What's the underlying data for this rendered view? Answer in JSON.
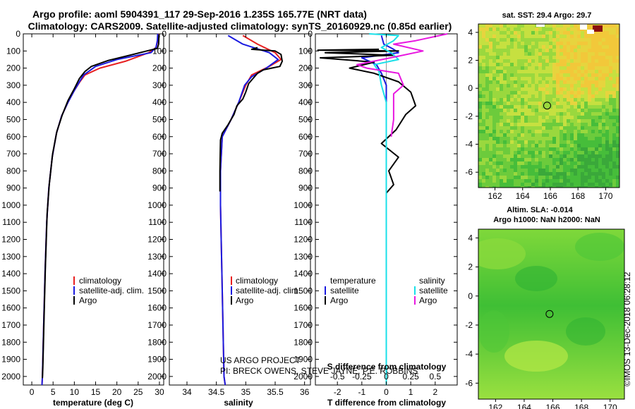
{
  "figure": {
    "title_line1": "Argo profile: aoml 5904391_117 29-Sep-2016 1.235S 165.77E (NRT data)",
    "title_line2": "Climatology: CARS2009. Satellite-adjusted climatology: synTS_20160929.nc (0.85d earlier)",
    "credit_line1": "US ARGO PROJECT",
    "credit_line2": "PI: BRECK OWENS, STEVE JAYNE, P.E. ROBBINS",
    "watermark": "©IMOS 13-Dec-2018 06:28:12"
  },
  "colors": {
    "climatology": "#e82020",
    "satellite": "#1a1ae0",
    "argo": "#000000",
    "cyan": "#18e0e8",
    "magenta": "#e818e0"
  },
  "chart_data": [
    {
      "type": "line",
      "name": "temperature",
      "xlabel": "temperature (deg C)",
      "xlim": [
        -2,
        31
      ],
      "ylim": [
        2050,
        0
      ],
      "xticks": [
        0,
        5,
        10,
        15,
        20,
        25,
        30
      ],
      "yticks": [
        0,
        100,
        200,
        300,
        400,
        500,
        600,
        700,
        800,
        900,
        1000,
        1100,
        1200,
        1300,
        1400,
        1500,
        1600,
        1700,
        1800,
        1900,
        2000
      ],
      "legend": [
        "climatology",
        "satellite-adj. clim.",
        "Argo"
      ],
      "series": [
        {
          "name": "climatology",
          "color": "#e82020",
          "points": [
            [
              29.8,
              0
            ],
            [
              29.6,
              40
            ],
            [
              29.2,
              80
            ],
            [
              27.5,
              110
            ],
            [
              22,
              160
            ],
            [
              16,
              200
            ],
            [
              12.5,
              240
            ],
            [
              11.3,
              280
            ],
            [
              10,
              330
            ],
            [
              8.5,
              400
            ],
            [
              7,
              480
            ],
            [
              5.8,
              580
            ],
            [
              4.8,
              720
            ],
            [
              4,
              900
            ],
            [
              3.5,
              1100
            ],
            [
              3.1,
              1400
            ],
            [
              2.8,
              1700
            ],
            [
              2.5,
              2000
            ],
            [
              2.4,
              2050
            ]
          ]
        },
        {
          "name": "satellite-adj. clim.",
          "color": "#1a1ae0",
          "points": [
            [
              29.6,
              0
            ],
            [
              29.5,
              40
            ],
            [
              29.2,
              80
            ],
            [
              28,
              110
            ],
            [
              20,
              150
            ],
            [
              15,
              190
            ],
            [
              12.2,
              240
            ],
            [
              11.2,
              280
            ],
            [
              10,
              330
            ],
            [
              8.5,
              400
            ],
            [
              7,
              480
            ],
            [
              5.8,
              580
            ],
            [
              4.8,
              720
            ],
            [
              4,
              900
            ],
            [
              3.5,
              1100
            ],
            [
              3.1,
              1400
            ],
            [
              2.8,
              1700
            ],
            [
              2.5,
              2000
            ],
            [
              2.4,
              2050
            ]
          ]
        },
        {
          "name": "Argo",
          "color": "#000000",
          "points": [
            [
              29.9,
              5
            ],
            [
              29.8,
              60
            ],
            [
              29.5,
              85
            ],
            [
              27,
              100
            ],
            [
              23,
              125
            ],
            [
              18,
              155
            ],
            [
              14,
              190
            ],
            [
              12.5,
              220
            ],
            [
              11.2,
              260
            ],
            [
              10,
              320
            ],
            [
              8.5,
              390
            ],
            [
              7.2,
              470
            ],
            [
              5.9,
              570
            ],
            [
              4.9,
              700
            ],
            [
              4.1,
              880
            ],
            [
              3.6,
              1050
            ],
            [
              3.2,
              1350
            ],
            [
              2.9,
              1650
            ],
            [
              2.6,
              1950
            ],
            [
              2.5,
              2010
            ]
          ]
        }
      ]
    },
    {
      "type": "line",
      "name": "salinity",
      "xlabel": "salinity",
      "xlim": [
        33.7,
        36.1
      ],
      "ylim": [
        2050,
        0
      ],
      "xticks": [
        34,
        34.5,
        35,
        35.5,
        36
      ],
      "yticks": [
        0,
        100,
        200,
        300,
        400,
        500,
        600,
        700,
        800,
        900,
        1000,
        1100,
        1200,
        1300,
        1400,
        1500,
        1600,
        1700,
        1800,
        1900,
        2000
      ],
      "legend": [
        "climatology",
        "satellite-adj. clim.",
        "Argo"
      ],
      "series": [
        {
          "name": "climatology",
          "color": "#e82020",
          "points": [
            [
              34.95,
              10
            ],
            [
              35.2,
              60
            ],
            [
              35.5,
              110
            ],
            [
              35.6,
              150
            ],
            [
              35.4,
              190
            ],
            [
              35.1,
              240
            ],
            [
              35,
              300
            ],
            [
              34.88,
              400
            ],
            [
              34.75,
              500
            ],
            [
              34.6,
              600
            ],
            [
              34.57,
              800
            ],
            [
              34.57,
              1000
            ],
            [
              34.6,
              1500
            ],
            [
              34.63,
              2000
            ],
            [
              34.65,
              2050
            ]
          ]
        },
        {
          "name": "satellite-adj. clim.",
          "color": "#1a1ae0",
          "points": [
            [
              34.7,
              10
            ],
            [
              34.95,
              60
            ],
            [
              35.4,
              110
            ],
            [
              35.55,
              150
            ],
            [
              35.35,
              200
            ],
            [
              35.1,
              250
            ],
            [
              34.98,
              300
            ],
            [
              34.88,
              400
            ],
            [
              34.75,
              500
            ],
            [
              34.6,
              600
            ],
            [
              34.57,
              800
            ],
            [
              34.57,
              1000
            ],
            [
              34.6,
              1500
            ],
            [
              34.63,
              2000
            ],
            [
              34.65,
              2050
            ]
          ]
        },
        {
          "name": "Argo",
          "color": "#000000",
          "points": [
            [
              35.2,
              80
            ],
            [
              35.1,
              90
            ],
            [
              35.5,
              100
            ],
            [
              35.6,
              120
            ],
            [
              35.62,
              160
            ],
            [
              35.58,
              190
            ],
            [
              35.3,
              210
            ],
            [
              35.2,
              230
            ],
            [
              35.05,
              290
            ],
            [
              35,
              340
            ],
            [
              34.95,
              380
            ],
            [
              34.85,
              420
            ],
            [
              34.8,
              470
            ],
            [
              34.7,
              530
            ],
            [
              34.6,
              580
            ],
            [
              34.57,
              620
            ],
            [
              34.56,
              800
            ],
            [
              34.56,
              920
            ]
          ]
        }
      ]
    },
    {
      "type": "line",
      "name": "difference",
      "xlabel": "T difference from climatology",
      "xlabel_top": "S difference from climatology",
      "xlim": [
        -2.9,
        2.9
      ],
      "ylim": [
        2050,
        0
      ],
      "xticks": [
        -2,
        -1,
        0,
        1,
        2
      ],
      "xticks_s": [
        "-0.5",
        "-0.25",
        "0",
        "0.25",
        "0.5"
      ],
      "yticks": [
        0,
        100,
        200,
        300,
        400,
        500,
        600,
        700,
        800,
        900,
        1000,
        1100,
        1200,
        1300,
        1400,
        1500,
        1600,
        1700,
        1800,
        1900,
        2000
      ],
      "legend_t_title": "temperature",
      "legend_s_title": "salinity",
      "legend_t": [
        "satellite",
        "Argo"
      ],
      "legend_s": [
        "satellite",
        "Argo"
      ],
      "series": [
        {
          "name": "T satellite",
          "color": "#1a1ae0",
          "points": [
            [
              -0.2,
              10
            ],
            [
              -0.1,
              60
            ],
            [
              0.3,
              90
            ],
            [
              0.5,
              110
            ],
            [
              -1,
              140
            ],
            [
              -0.4,
              180
            ],
            [
              -0.2,
              230
            ],
            [
              0,
              300
            ],
            [
              0,
              500
            ],
            [
              0,
              1000
            ],
            [
              0,
              1500
            ],
            [
              0,
              2050
            ]
          ]
        },
        {
          "name": "T Argo",
          "color": "#000000",
          "points": [
            [
              -0.3,
              90
            ],
            [
              -2.8,
              95
            ],
            [
              0.5,
              100
            ],
            [
              -2.5,
              110
            ],
            [
              0.3,
              125
            ],
            [
              -2.7,
              140
            ],
            [
              -0.5,
              165
            ],
            [
              -1.5,
              200
            ],
            [
              -0.5,
              230
            ],
            [
              0.5,
              280
            ],
            [
              1,
              340
            ],
            [
              1.2,
              420
            ],
            [
              0.8,
              470
            ],
            [
              0.4,
              560
            ],
            [
              -0.2,
              640
            ],
            [
              0.5,
              720
            ],
            [
              0.1,
              800
            ],
            [
              0.3,
              880
            ],
            [
              0,
              930
            ]
          ]
        },
        {
          "name": "S satellite",
          "color": "#18e0e8",
          "points": [
            [
              -0.7,
              0
            ],
            [
              0.5,
              10
            ],
            [
              0.3,
              40
            ],
            [
              -0.2,
              80
            ],
            [
              0.2,
              110
            ],
            [
              0.5,
              150
            ],
            [
              -0.5,
              180
            ],
            [
              -0.3,
              220
            ],
            [
              -0.2,
              300
            ],
            [
              0,
              400
            ],
            [
              0,
              600
            ],
            [
              0,
              900
            ],
            [
              0,
              1500
            ],
            [
              0,
              2050
            ]
          ]
        },
        {
          "name": "S Argo",
          "color": "#e818e0",
          "points": [
            [
              2.5,
              0
            ],
            [
              1.2,
              40
            ],
            [
              0.3,
              60
            ],
            [
              1.5,
              100
            ],
            [
              0.5,
              130
            ],
            [
              -1.2,
              180
            ],
            [
              -0.8,
              200
            ],
            [
              0.5,
              230
            ],
            [
              0.7,
              300
            ],
            [
              0.3,
              350
            ],
            [
              0.3,
              500
            ],
            [
              0.2,
              600
            ]
          ]
        }
      ]
    },
    {
      "type": "heatmap",
      "name": "sst-map",
      "title": "sat. SST: 29.4 Argo: 29.7",
      "xlim": [
        160.8,
        171
      ],
      "ylim": [
        -7.1,
        4.6
      ],
      "xticks": [
        162,
        164,
        166,
        168,
        170
      ],
      "yticks": [
        4,
        2,
        0,
        -2,
        -4,
        -6
      ],
      "float_position": [
        165.77,
        -1.235
      ]
    },
    {
      "type": "heatmap",
      "name": "sla-map",
      "title": "Altim. SLA: -0.014",
      "title2": "Argo h1000: NaN h2000: NaN",
      "xlim": [
        160.8,
        171
      ],
      "ylim": [
        -7.1,
        4.6
      ],
      "xticks": [
        162,
        164,
        166,
        168,
        170
      ],
      "yticks": [
        4,
        2,
        0,
        -2,
        -4,
        -6
      ],
      "float_position": [
        165.77,
        -1.235
      ]
    }
  ]
}
